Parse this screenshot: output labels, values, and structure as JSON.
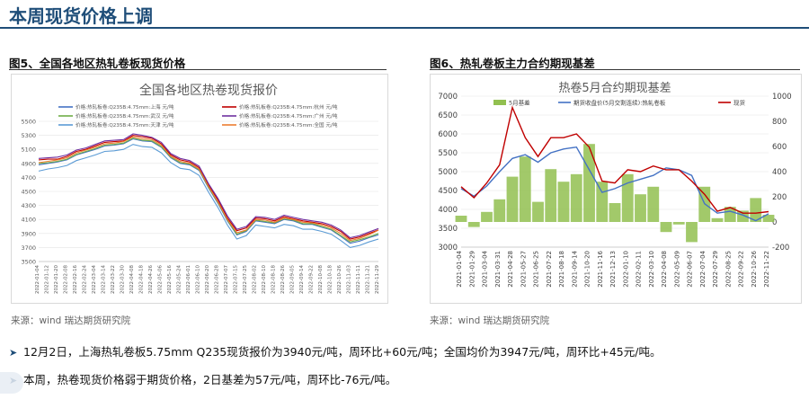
{
  "header": {
    "title": "本周现货价格上调"
  },
  "figures": {
    "left_caption": "图5、全国各地区热轧卷板现货价格",
    "right_caption": "图6、热轧卷板主力合约期现基差",
    "left_source": "来源：wind   瑞达期货研究院",
    "right_source": "来源：wind   瑞达期货研究院"
  },
  "bullets": [
    "12月2日，上海热轧卷板5.75mm Q235现货报价为3940元/吨，周环比+60元/吨；全国均价为3947元/吨，周环比+45元/吨。",
    "本周，热卷现货价格弱于期货价格，2日基差为57元/吨，周环比-76元/吨。"
  ],
  "colors": {
    "accent": "#1f4e79"
  },
  "chart_data": [
    {
      "type": "line",
      "title": "全国各地区热卷现货报价",
      "xlabel": "",
      "ylabel": "",
      "ylim": [
        3500,
        5500
      ],
      "yticks": [
        "3500",
        "3700",
        "3900",
        "4100",
        "4300",
        "4500",
        "4700",
        "4900",
        "5100",
        "5300",
        "5500"
      ],
      "x": [
        "2022-01-04",
        "2022-01-12",
        "2022-01-20",
        "2022-02-08",
        "2022-02-16",
        "2022-02-24",
        "2022-03-04",
        "2022-03-14",
        "2022-03-22",
        "2022-03-30",
        "2022-04-08",
        "2022-04-18",
        "2022-04-26",
        "2022-05-06",
        "2022-05-16",
        "2022-05-24",
        "2022-06-01",
        "2022-06-10",
        "2022-06-20",
        "2022-06-28",
        "2022-07-07",
        "2022-07-15",
        "2022-07-25",
        "2022-08-02",
        "2022-08-10",
        "2022-08-18",
        "2022-08-26",
        "2022-09-05",
        "2022-09-14",
        "2022-09-22",
        "2022-10-08",
        "2022-10-18",
        "2022-10-26",
        "2022-11-03",
        "2022-11-11",
        "2022-11-21",
        "2022-11-29"
      ],
      "legend": "top",
      "series": [
        {
          "name": "价格:热轧板卷:Q235B:4.75mm:上海 元/吨",
          "color": "#4472c4",
          "values": [
            4880,
            4900,
            4920,
            4950,
            5020,
            5060,
            5100,
            5150,
            5160,
            5180,
            5250,
            5220,
            5210,
            5130,
            4980,
            4900,
            4880,
            4800,
            4550,
            4330,
            4080,
            3880,
            3930,
            4080,
            4060,
            4040,
            4100,
            4080,
            4030,
            4030,
            3990,
            3950,
            3860,
            3760,
            3790,
            3840,
            3880
          ]
        },
        {
          "name": "价格:热轧板卷:Q235B:4.75mm:杭州 元/吨",
          "color": "#c00000",
          "values": [
            4950,
            4960,
            4960,
            5000,
            5070,
            5100,
            5150,
            5200,
            5210,
            5220,
            5300,
            5280,
            5260,
            5180,
            5020,
            4950,
            4920,
            4840,
            4590,
            4380,
            4120,
            3940,
            3980,
            4120,
            4110,
            4080,
            4140,
            4110,
            4080,
            4060,
            4040,
            4000,
            3930,
            3820,
            3850,
            3900,
            3950
          ]
        },
        {
          "name": "价格:热轧板卷:Q235B:4.75mm:武汉 元/吨",
          "color": "#70ad47",
          "values": [
            4900,
            4910,
            4930,
            4960,
            5030,
            5070,
            5110,
            5160,
            5170,
            5190,
            5260,
            5230,
            5220,
            5140,
            4990,
            4910,
            4890,
            4810,
            4560,
            4340,
            4090,
            3890,
            3940,
            4090,
            4070,
            4050,
            4110,
            4090,
            4040,
            4040,
            4000,
            3960,
            3870,
            3780,
            3810,
            3850,
            3900
          ]
        },
        {
          "name": "价格:热轧板卷:Q235B:4.75mm:广州 元/吨",
          "color": "#7030a0",
          "values": [
            4970,
            4980,
            4990,
            5020,
            5090,
            5120,
            5170,
            5220,
            5230,
            5240,
            5320,
            5300,
            5270,
            5200,
            5040,
            4970,
            4940,
            4860,
            4610,
            4400,
            4150,
            3960,
            4000,
            4140,
            4130,
            4100,
            4160,
            4130,
            4100,
            4080,
            4060,
            4020,
            3950,
            3840,
            3870,
            3920,
            3970
          ]
        },
        {
          "name": "价格:热轧板卷:Q235B:4.75mm:天津 元/吨",
          "color": "#5b9bd5",
          "values": [
            4790,
            4820,
            4840,
            4870,
            4940,
            4980,
            5020,
            5070,
            5080,
            5100,
            5170,
            5140,
            5130,
            5050,
            4910,
            4830,
            4810,
            4730,
            4490,
            4270,
            4020,
            3820,
            3870,
            4020,
            4000,
            3980,
            4030,
            4010,
            3960,
            3960,
            3930,
            3890,
            3800,
            3700,
            3730,
            3780,
            3820
          ]
        },
        {
          "name": "价格:热轧板卷:Q235B:4.75mm:全国 元/吨",
          "color": "#ed7d31",
          "values": [
            4910,
            4930,
            4950,
            4980,
            5050,
            5090,
            5130,
            5180,
            5190,
            5210,
            5280,
            5250,
            5240,
            5160,
            5000,
            4930,
            4900,
            4820,
            4570,
            4350,
            4100,
            3910,
            3950,
            4100,
            4090,
            4060,
            4120,
            4100,
            4060,
            4050,
            4020,
            3980,
            3900,
            3800,
            3830,
            3880,
            3947
          ]
        }
      ]
    },
    {
      "type": "line",
      "title": "热卷5月合约期现基差",
      "xlabel": "",
      "ylabel": "",
      "ylim": [
        3000,
        7000
      ],
      "ylim_right": [
        -200,
        1000
      ],
      "yticks": [
        "3000",
        "3500",
        "4000",
        "4500",
        "5000",
        "5500",
        "6000",
        "6500",
        "7000"
      ],
      "yticks_right": [
        "-200",
        "0",
        "200",
        "400",
        "600",
        "800",
        "1000"
      ],
      "x": [
        "2021-01-04",
        "2021-01-29",
        "2021-03-04",
        "2021-03-31",
        "2021-04-28",
        "2021-05-27",
        "2021-06-25",
        "2021-07-22",
        "2021-08-18",
        "2021-09-14",
        "2021-10-20",
        "2021-11-16",
        "2021-12-13",
        "2022-01-10",
        "2022-02-11",
        "2022-03-10",
        "2022-04-08",
        "2022-05-09",
        "2022-06-07",
        "2022-07-04",
        "2022-07-29",
        "2022-08-25",
        "2022-09-22",
        "2022-10-26",
        "2022-11-22"
      ],
      "legend": "top",
      "series": [
        {
          "name": "5月基差",
          "type": "bar",
          "axis": "right",
          "color": "#92c050",
          "values": [
            50,
            -40,
            80,
            180,
            360,
            520,
            160,
            420,
            320,
            380,
            620,
            320,
            150,
            380,
            220,
            280,
            -80,
            -20,
            -160,
            280,
            30,
            120,
            90,
            190,
            57
          ]
        },
        {
          "name": "期货收盘价(5月交割连续):热轧卷板",
          "axis": "left",
          "color": "#4472c4",
          "values": [
            4550,
            4350,
            4620,
            5000,
            5350,
            5450,
            5250,
            5500,
            5600,
            5650,
            5050,
            4450,
            4550,
            4700,
            4800,
            4900,
            5100,
            5050,
            4900,
            4150,
            3900,
            3950,
            3850,
            3700,
            3883
          ]
        },
        {
          "name": "现货",
          "axis": "left",
          "color": "#c00000",
          "values": [
            4600,
            4310,
            4700,
            5180,
            6700,
            5900,
            5400,
            5900,
            5900,
            6000,
            5650,
            4750,
            4700,
            5050,
            5000,
            5150,
            5050,
            5050,
            4750,
            4400,
            3950,
            4050,
            3900,
            3900,
            3940
          ]
        }
      ]
    }
  ]
}
